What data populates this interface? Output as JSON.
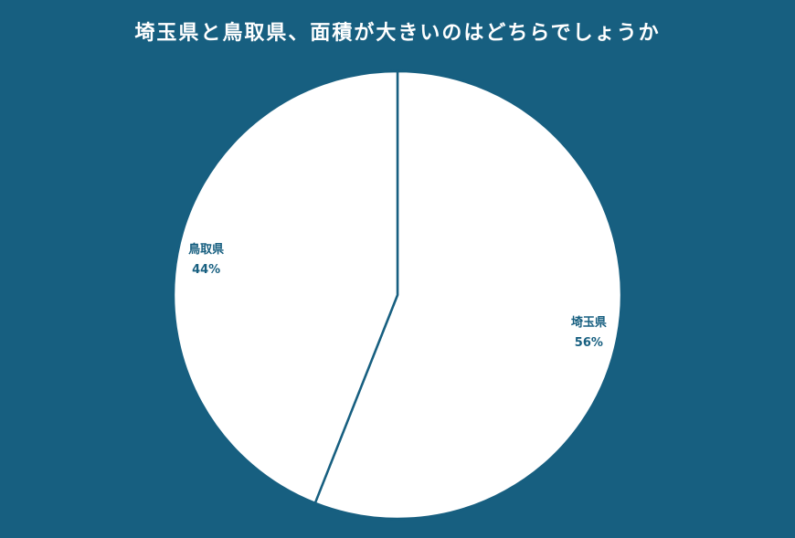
{
  "chart_data": {
    "type": "pie",
    "title": "埼玉県と鳥取県、面積が大きいのはどちらでしょうか",
    "slices": [
      {
        "label": "埼玉県",
        "value": 56,
        "value_label": "56%"
      },
      {
        "label": "鳥取県",
        "value": 44,
        "value_label": "44%"
      }
    ],
    "colors": {
      "background": "#175f80",
      "slice_fill": "#ffffff",
      "border": "#175f80",
      "label": "#175f80"
    }
  }
}
